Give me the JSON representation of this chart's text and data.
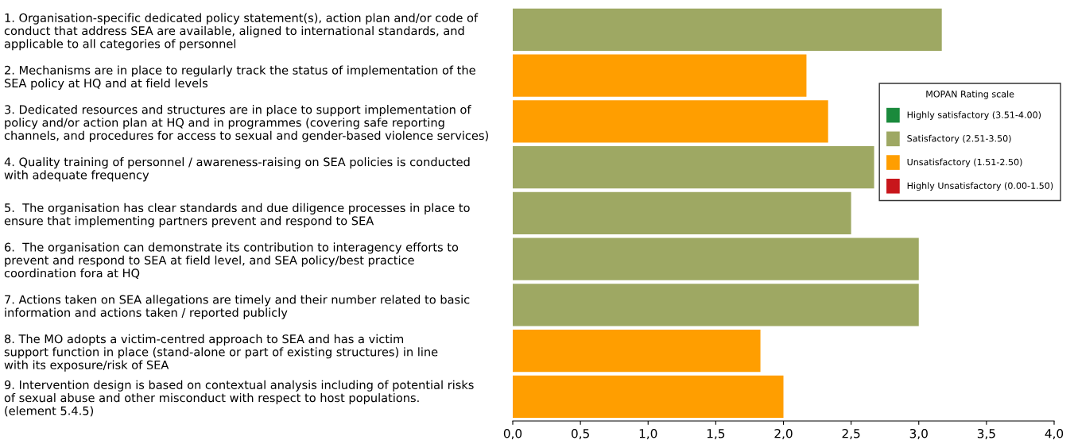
{
  "chart_data": {
    "type": "bar",
    "orientation": "horizontal",
    "categories": [
      "1. Organisation-specific dedicated policy statement(s), action plan and/or code of\nconduct that address SEA are available, aligned to international standards, and\napplicable to all categories of personnel",
      "2. Mechanisms are in place to regularly track the status of implementation of the\nSEA policy at HQ and at field levels",
      "3. Dedicated resources and structures are in place to support implementation of\npolicy and/or action plan at HQ and in programmes (covering safe reporting\nchannels, and procedures for access to sexual and gender-based violence services)",
      "4. Quality training of personnel / awareness-raising on SEA policies is conducted\nwith adequate frequency",
      "5.  The organisation has clear standards and due diligence processes in place to\nensure that implementing partners prevent and respond to SEA",
      "6.  The organisation can demonstrate its contribution to interagency efforts to\nprevent and respond to SEA at field level, and SEA policy/best practice\ncoordination fora at HQ",
      "7. Actions taken on SEA allegations are timely and their number related to basic\ninformation and actions taken / reported publicly",
      "8. The MO adopts a victim-centred approach to SEA and has a victim\nsupport function in place (stand-alone or part of existing structures) in line\nwith its exposure/risk of SEA",
      "9. Intervention design is based on contextual analysis including of potential risks\nof sexual abuse and other misconduct with respect to host populations.\n(element 5.4.5)"
    ],
    "series": [
      {
        "name": "Highly satisfactory (3.51-4.00)",
        "color": "#1a8a3c",
        "values": [
          null,
          null,
          null,
          null,
          null,
          null,
          null,
          null,
          null
        ]
      },
      {
        "name": "Satisfactory (2.51-3.50)",
        "color": "#9ea863",
        "values": [
          3.17,
          null,
          null,
          2.67,
          2.5,
          3.0,
          3.0,
          null,
          null
        ]
      },
      {
        "name": "Unsatisfactory (1.51-2.50)",
        "color": "#ff9e00",
        "values": [
          null,
          2.17,
          2.33,
          null,
          null,
          null,
          null,
          1.83,
          2.0
        ]
      },
      {
        "name": "Highly Unsatisfactory (0.00-1.50)",
        "color": "#c8161b",
        "values": [
          null,
          null,
          null,
          null,
          null,
          null,
          null,
          null,
          null
        ]
      }
    ],
    "xlim": [
      0,
      4
    ],
    "xticks": [
      {
        "value": 0,
        "label": "0,0"
      },
      {
        "value": 0.5,
        "label": "0,5"
      },
      {
        "value": 1,
        "label": "1,0"
      },
      {
        "value": 1.5,
        "label": "1,5"
      },
      {
        "value": 2,
        "label": "2,0"
      },
      {
        "value": 2.5,
        "label": "2,5"
      },
      {
        "value": 3,
        "label": "3,0"
      },
      {
        "value": 3.5,
        "label": "3,5"
      },
      {
        "value": 4,
        "label": "4,0"
      }
    ],
    "legend_title": "MOPAN Rating scale",
    "legend": "top right",
    "grid": false
  }
}
